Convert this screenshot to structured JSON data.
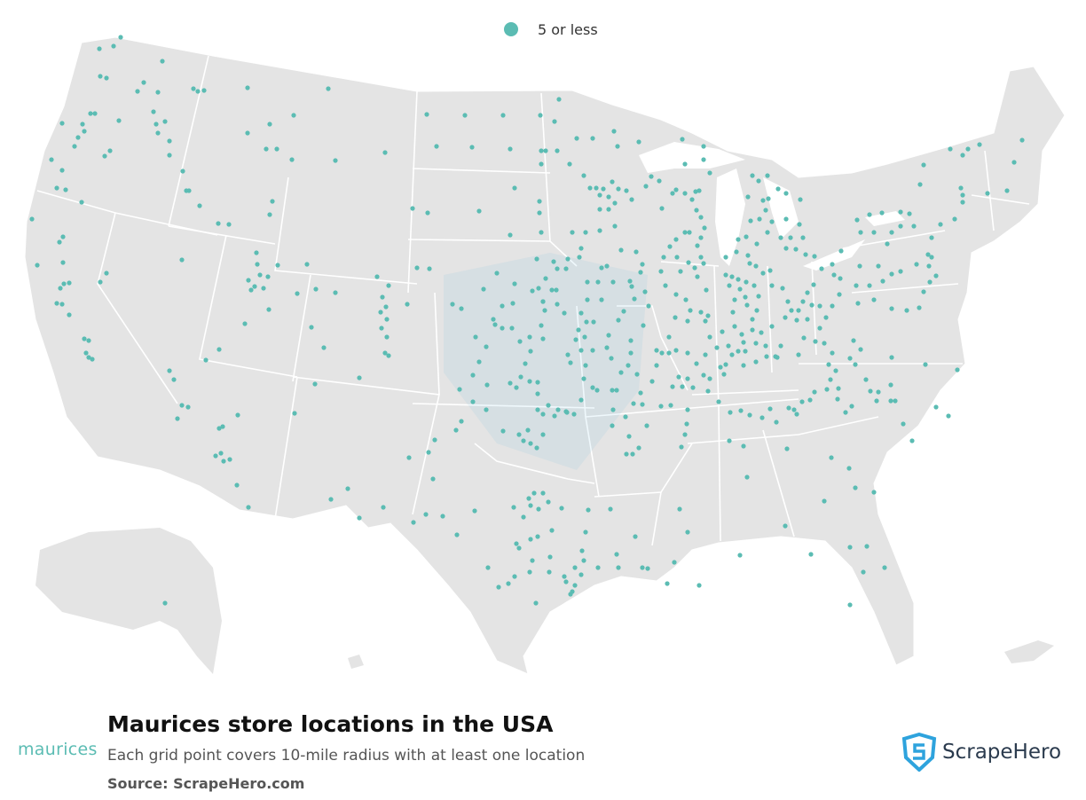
{
  "legend": {
    "label": "5 or less",
    "color": "#5bbcb3"
  },
  "title": "Maurices store locations in the USA",
  "subtitle": "Each grid point covers 10-mile radius with at least one location",
  "source": "Source: ScrapeHero.com",
  "brand": {
    "name": "maurices",
    "color": "#5bbcb3"
  },
  "publisher": {
    "name": "ScrapeHero",
    "icon": "shield-s-icon",
    "color": "#2ea3dd"
  },
  "map": {
    "land_color": "#e4e4e4",
    "border_color": "#ffffff",
    "dot_color": "#5bbcb3"
  }
}
